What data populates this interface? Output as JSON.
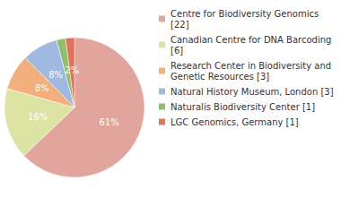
{
  "chart_data": {
    "type": "pie",
    "categories": [
      "Centre for Biodiversity Genomics [22]",
      "Canadian Centre for DNA Barcoding [6]",
      "Research Center in Biodiversity and Genetic Resources [3]",
      "Natural History Museum, London [3]",
      "Naturalis Biodiversity Center [1]",
      "LGC Genomics, Germany [1]"
    ],
    "values": [
      61,
      16,
      8,
      8,
      2,
      2
    ],
    "value_labels": [
      "61%",
      "16%",
      "8%",
      "8%",
      "2%",
      "2%"
    ],
    "colors": [
      "#e2a59e",
      "#dde3a2",
      "#f2ae7c",
      "#9fb9e0",
      "#8fbf6c",
      "#e0735a"
    ],
    "data_labels": true,
    "legend": "right"
  }
}
